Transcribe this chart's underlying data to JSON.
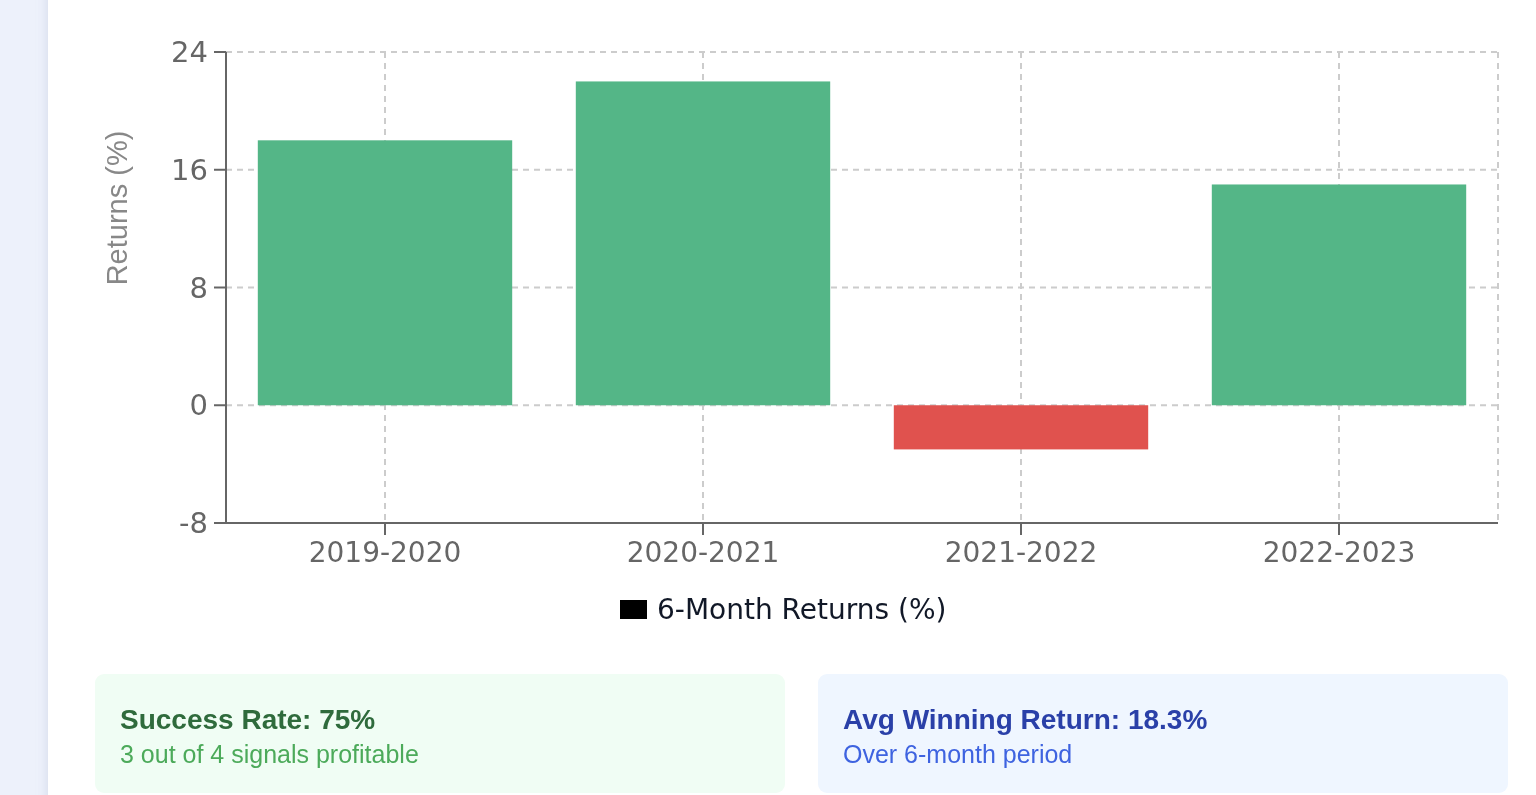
{
  "chart_data": [
    {
      "type": "bar",
      "ylabel": "Returns (%)",
      "categories": [
        "2019-2020",
        "2020-2021",
        "2021-2022",
        "2022-2023"
      ],
      "series": [
        {
          "name": "6-Month Returns (%)",
          "color": "#000000",
          "colors": [
            "#54b687",
            "#54b687",
            "#e0524e",
            "#54b687"
          ],
          "values": [
            18,
            22,
            -3,
            15
          ]
        }
      ],
      "ylim": [
        -8,
        24
      ],
      "yticks": [
        -8,
        0,
        8,
        16,
        24
      ],
      "grid": true,
      "legend": "bottom"
    },
    {
      "type": "other",
      "title": "Success Rate: 75%",
      "subtitle": "3 out of 4 signals profitable"
    },
    {
      "type": "other",
      "title": "Avg Winning Return: 18.3%",
      "subtitle": "Over 6-month period"
    }
  ]
}
